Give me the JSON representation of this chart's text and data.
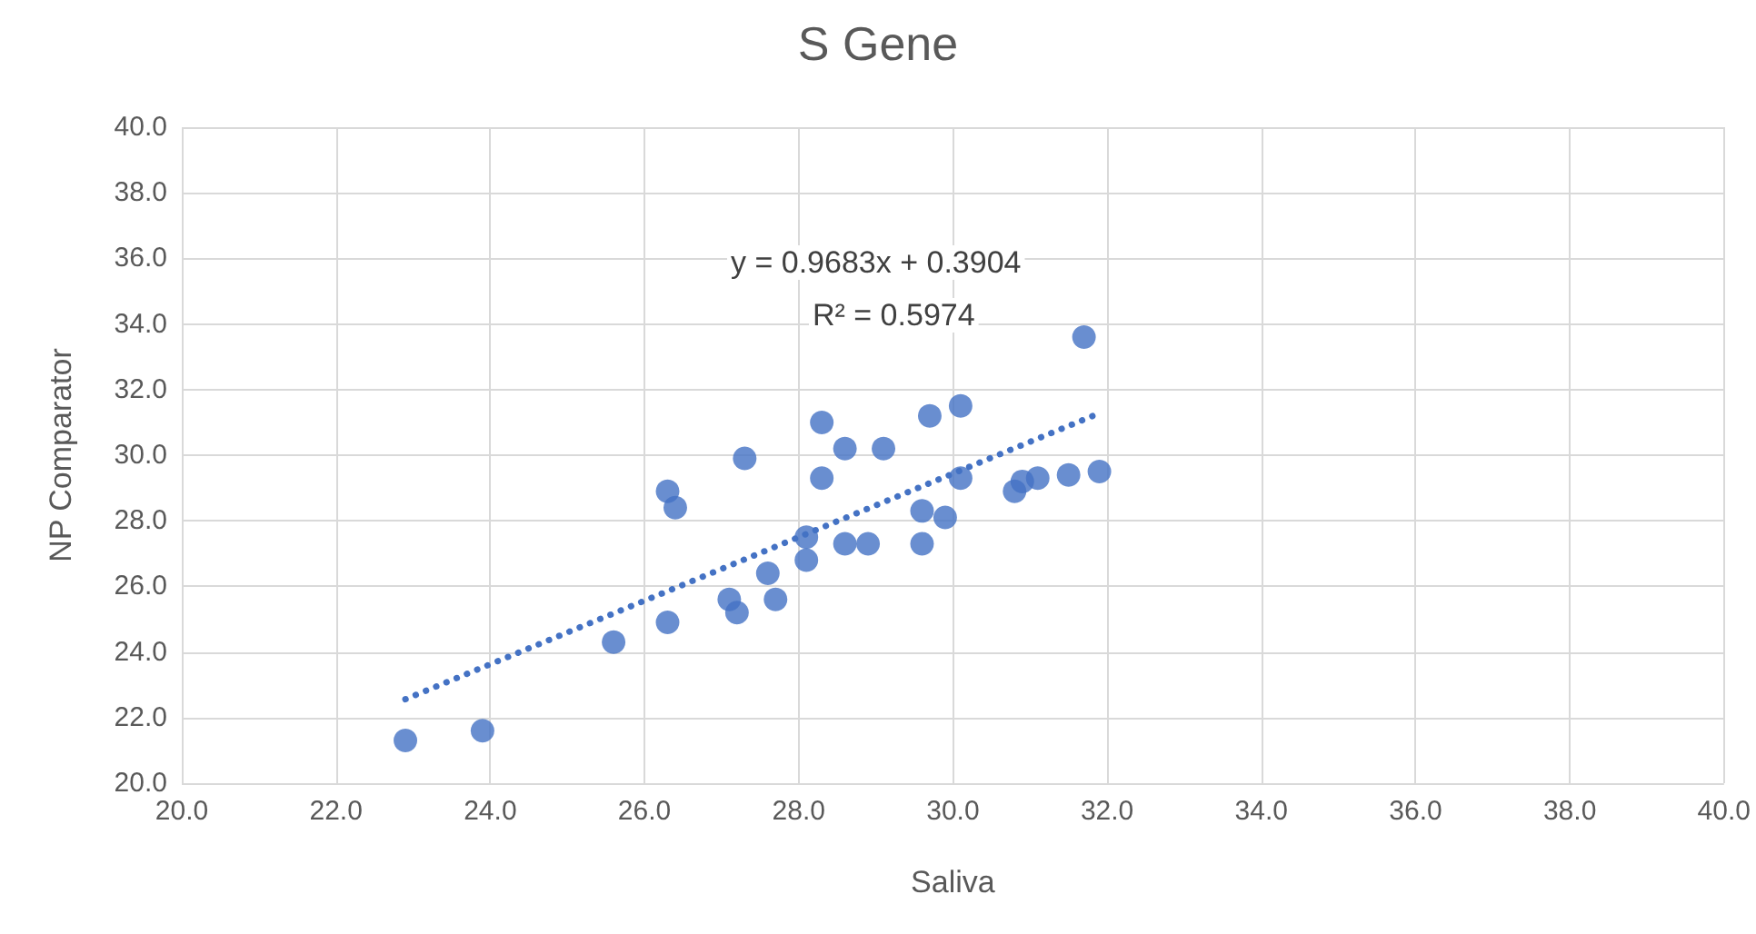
{
  "chart_data": {
    "type": "scatter",
    "title": "S Gene",
    "xlabel": "Saliva",
    "ylabel": "NP Comparator",
    "annotations": [
      "y = 0.9683x + 0.3904",
      "R² = 0.5974"
    ],
    "series": [
      {
        "color": "#4472c4",
        "marker": "circle",
        "x": [
          22.9,
          23.9,
          25.6,
          26.3,
          26.3,
          26.4,
          27.1,
          27.2,
          27.3,
          27.6,
          27.7,
          28.1,
          28.1,
          28.3,
          28.3,
          28.6,
          28.6,
          28.9,
          29.1,
          29.6,
          29.6,
          29.7,
          29.9,
          30.1,
          30.1,
          30.8,
          30.9,
          31.1,
          31.5,
          31.7,
          31.9
        ],
        "values": [
          21.3,
          21.6,
          24.3,
          24.9,
          28.9,
          28.4,
          25.6,
          25.2,
          29.9,
          26.4,
          25.6,
          26.8,
          27.5,
          31.0,
          29.3,
          30.2,
          27.3,
          27.3,
          30.2,
          27.3,
          28.3,
          31.2,
          28.1,
          31.5,
          29.3,
          28.9,
          29.2,
          29.3,
          29.4,
          33.6,
          29.5
        ]
      },
      {
        "type": "line",
        "color": "#4472c4",
        "line_style": "dotted",
        "marker": "none",
        "x": [
          22.9,
          31.9
        ],
        "values": [
          22.56,
          31.28
        ]
      }
    ],
    "xlim": [
      20,
      40
    ],
    "ylim": [
      20,
      40
    ],
    "xticks": [
      {
        "value": 20,
        "label": "20.0"
      },
      {
        "value": 22,
        "label": "22.0"
      },
      {
        "value": 24,
        "label": "24.0"
      },
      {
        "value": 26,
        "label": "26.0"
      },
      {
        "value": 28,
        "label": "28.0"
      },
      {
        "value": 30,
        "label": "30.0"
      },
      {
        "value": 32,
        "label": "32.0"
      },
      {
        "value": 34,
        "label": "34.0"
      },
      {
        "value": 36,
        "label": "36.0"
      },
      {
        "value": 38,
        "label": "38.0"
      },
      {
        "value": 40,
        "label": "40.0"
      }
    ],
    "yticks": [
      {
        "value": 20,
        "label": "20.0"
      },
      {
        "value": 22,
        "label": "22.0"
      },
      {
        "value": 24,
        "label": "24.0"
      },
      {
        "value": 26,
        "label": "26.0"
      },
      {
        "value": 28,
        "label": "28.0"
      },
      {
        "value": 30,
        "label": "30.0"
      },
      {
        "value": 32,
        "label": "32.0"
      },
      {
        "value": 34,
        "label": "34.0"
      },
      {
        "value": 36,
        "label": "36.0"
      },
      {
        "value": 38,
        "label": "38.0"
      },
      {
        "value": 40,
        "label": "40.0"
      }
    ],
    "grid": true
  }
}
